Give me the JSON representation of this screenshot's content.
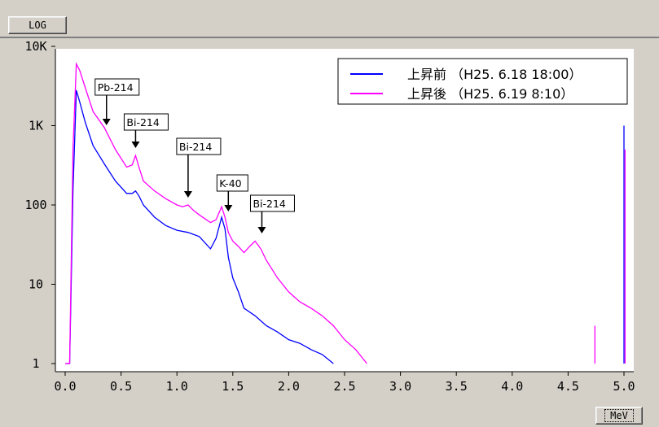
{
  "toolbar": {
    "log_label": "LOG",
    "unit_label": "MeV"
  },
  "colors": {
    "before": "#0000ff",
    "after": "#ff00ff",
    "background": "#ffffff",
    "window": "#d4d0c8"
  },
  "chart_data": {
    "type": "line",
    "title": "",
    "xlabel": "MeV",
    "ylabel": "",
    "yscale": "log",
    "xlim": [
      0,
      5.05
    ],
    "ylim": [
      1,
      12000
    ],
    "x_ticks": [
      "0.0",
      "0.5",
      "1.0",
      "1.5",
      "2.0",
      "2.5",
      "3.0",
      "3.5",
      "4.0",
      "4.5",
      "5.0"
    ],
    "y_ticks": [
      {
        "value": 1,
        "label": "1"
      },
      {
        "value": 10,
        "label": "10"
      },
      {
        "value": 100,
        "label": "100"
      },
      {
        "value": 1000,
        "label": "1K"
      },
      {
        "value": 10000,
        "label": "10K"
      }
    ],
    "legend_position": "top-right",
    "series": [
      {
        "name": "上昇前 （H25. 6.18 18:00）",
        "color": "#0000ff",
        "x": [
          0.0,
          0.04,
          0.07,
          0.1,
          0.13,
          0.18,
          0.25,
          0.35,
          0.45,
          0.55,
          0.6,
          0.63,
          0.66,
          0.7,
          0.8,
          0.9,
          1.0,
          1.1,
          1.2,
          1.3,
          1.35,
          1.4,
          1.43,
          1.46,
          1.5,
          1.55,
          1.6,
          1.7,
          1.8,
          1.9,
          2.0,
          2.1,
          2.2,
          2.3,
          2.4
        ],
        "y": [
          1,
          1,
          150,
          2800,
          2000,
          1100,
          560,
          330,
          200,
          140,
          140,
          150,
          130,
          100,
          70,
          55,
          48,
          45,
          40,
          28,
          38,
          70,
          50,
          22,
          12,
          8,
          5,
          4,
          3,
          2.5,
          2,
          1.8,
          1.5,
          1.3,
          1
        ]
      },
      {
        "name": "上昇後 （H25. 6.19  8:10）",
        "color": "#ff00ff",
        "x": [
          0.0,
          0.04,
          0.07,
          0.1,
          0.13,
          0.18,
          0.25,
          0.35,
          0.45,
          0.55,
          0.6,
          0.63,
          0.66,
          0.7,
          0.8,
          0.9,
          1.0,
          1.05,
          1.1,
          1.15,
          1.2,
          1.3,
          1.35,
          1.4,
          1.43,
          1.46,
          1.5,
          1.55,
          1.6,
          1.65,
          1.7,
          1.75,
          1.8,
          1.9,
          2.0,
          2.1,
          2.2,
          2.3,
          2.4,
          2.5,
          2.6,
          2.7
        ],
        "y": [
          1,
          1,
          500,
          6000,
          5000,
          3000,
          1500,
          950,
          500,
          300,
          320,
          420,
          300,
          200,
          150,
          120,
          100,
          95,
          100,
          85,
          75,
          60,
          65,
          95,
          70,
          45,
          35,
          30,
          25,
          30,
          35,
          28,
          20,
          12,
          8,
          6,
          5,
          4,
          3,
          2,
          1.5,
          1
        ]
      }
    ],
    "spikes": [
      {
        "series": 1,
        "x": 4.74,
        "y": 3
      },
      {
        "series": 0,
        "x": 5.0,
        "y": 1000
      },
      {
        "series": 1,
        "x": 5.01,
        "y": 500
      }
    ],
    "annotations": [
      {
        "text": "Pb-214",
        "x": 0.37
      },
      {
        "text": "Bi-214",
        "x": 0.63
      },
      {
        "text": "Bi-214",
        "x": 1.1
      },
      {
        "text": "K-40",
        "x": 1.46
      },
      {
        "text": "Bi-214",
        "x": 1.76
      }
    ]
  }
}
